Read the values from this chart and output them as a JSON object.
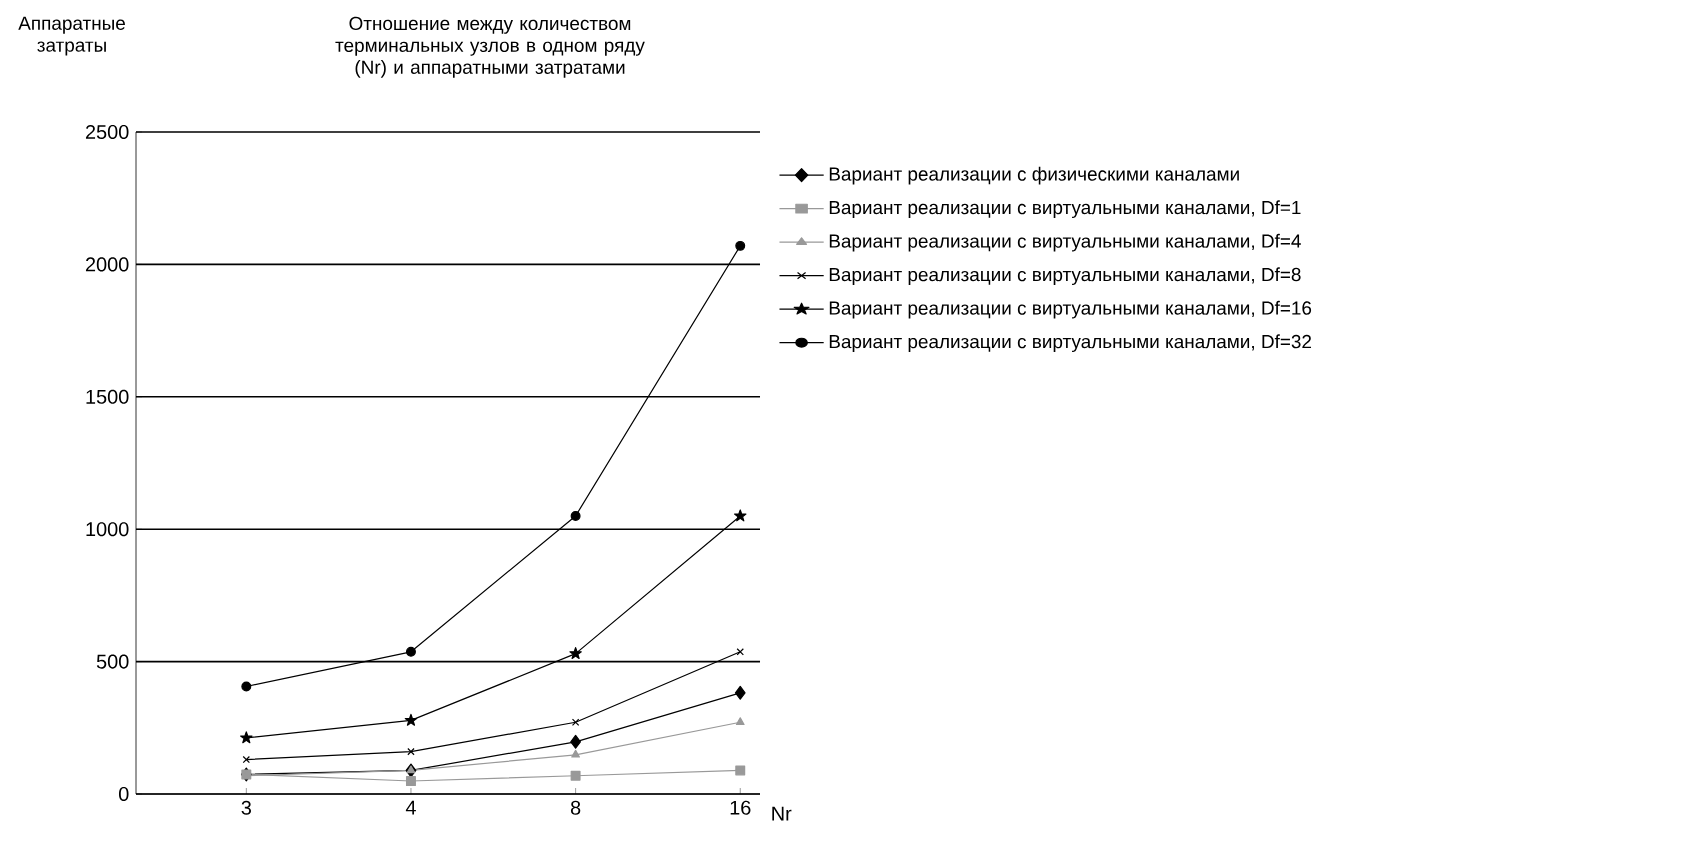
{
  "chart_data": {
    "type": "line",
    "title": "Отношение между количеством терминальных узлов в одном ряду (Nr) и аппаратными затратами",
    "xlabel": "Nr",
    "ylabel": "Аппаратные затраты",
    "categories": [
      "3",
      "4",
      "8",
      "16"
    ],
    "ylim": [
      0,
      2500
    ],
    "yticks": [
      0,
      500,
      1000,
      1500,
      2000,
      2500
    ],
    "grid": "y",
    "legend": "right",
    "series": [
      {
        "name": "Вариант реализации с физическими каналами",
        "color": "#000000",
        "marker": "diamond",
        "values": [
          74,
          89,
          197,
          382
        ]
      },
      {
        "name": "Вариант реализации с виртуальными каналами, Df=1",
        "color": "#999999",
        "marker": "square",
        "values": [
          74,
          49,
          69,
          89
        ]
      },
      {
        "name": "Вариант реализации с виртуальными каналами, Df=4",
        "color": "#999999",
        "marker": "triangle",
        "values": [
          69,
          89,
          148,
          271
        ]
      },
      {
        "name": "Вариант реализации с виртуальными каналами, Df=8",
        "color": "#000000",
        "marker": "cross",
        "values": [
          130,
          160,
          271,
          537
        ]
      },
      {
        "name": "Вариант реализации с виртуальными каналами, Df=16",
        "color": "#000000",
        "marker": "star",
        "values": [
          212,
          278,
          530,
          1050
        ]
      },
      {
        "name": "Вариант реализации с виртуальными каналами, Df=32",
        "color": "#000000",
        "marker": "circle",
        "values": [
          406,
          537,
          1050,
          2070
        ]
      }
    ]
  }
}
